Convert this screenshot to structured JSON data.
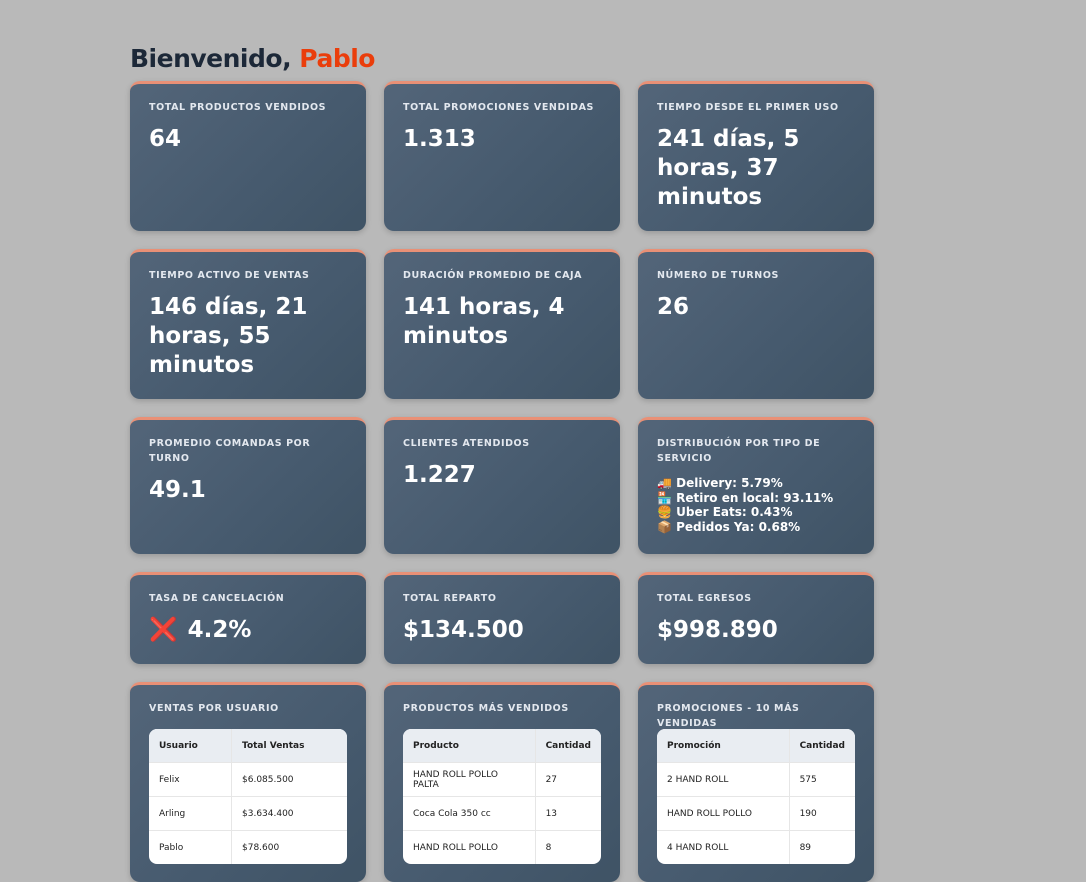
{
  "greeting": {
    "prefix": "Bienvenido,",
    "name": "Pablo"
  },
  "cards": [
    {
      "label": "TOTAL PRODUCTOS VENDIDOS",
      "value": "64"
    },
    {
      "label": "TOTAL PROMOCIONES VENDIDAS",
      "value": "1.313"
    },
    {
      "label": "TIEMPO DESDE EL PRIMER USO",
      "value": "241 días, 5 horas, 37 minutos"
    },
    {
      "label": "TIEMPO ACTIVO DE VENTAS",
      "value": "146 días, 21 horas, 55 minutos"
    },
    {
      "label": "DURACIÓN PROMEDIO DE CAJA",
      "value": "141 horas, 4 minutos"
    },
    {
      "label": "NÚMERO DE TURNOS",
      "value": "26"
    },
    {
      "label": "PROMEDIO COMANDAS POR TURNO",
      "value": "49.1"
    },
    {
      "label": "CLIENTES ATENDIDOS",
      "value": "1.227"
    },
    {
      "label": "DISTRIBUCIÓN POR TIPO DE SERVICIO",
      "lines": [
        "🚚 Delivery: 5.79%",
        "🏪 Retiro en local: 93.11%",
        "🍔 Uber Eats: 0.43%",
        "📦 Pedidos Ya: 0.68%"
      ]
    },
    {
      "label": "TASA DE CANCELACIÓN",
      "icon": "❌",
      "value": "4.2%"
    },
    {
      "label": "TOTAL REPARTO",
      "value": "$134.500"
    },
    {
      "label": "TOTAL EGRESOS",
      "value": "$998.890"
    }
  ],
  "tables": [
    {
      "title": "VENTAS POR USUARIO",
      "columns": [
        "Usuario",
        "Total Ventas"
      ],
      "rows": [
        [
          "Felix",
          "$6.085.500"
        ],
        [
          "Arling",
          "$3.634.400"
        ],
        [
          "Pablo",
          "$78.600"
        ]
      ]
    },
    {
      "title": "PRODUCTOS MÁS VENDIDOS",
      "columns": [
        "Producto",
        "Cantidad"
      ],
      "rows": [
        [
          "HAND ROLL POLLO PALTA",
          "27"
        ],
        [
          "Coca Cola 350 cc",
          "13"
        ],
        [
          "HAND ROLL POLLO",
          "8"
        ]
      ]
    },
    {
      "title": "PROMOCIONES - 10 MÁS VENDIDAS",
      "columns": [
        "Promoción",
        "Cantidad"
      ],
      "rows": [
        [
          "2 HAND ROLL",
          "575"
        ],
        [
          "HAND ROLL POLLO",
          "190"
        ],
        [
          "4 HAND ROLL",
          "89"
        ]
      ]
    }
  ]
}
